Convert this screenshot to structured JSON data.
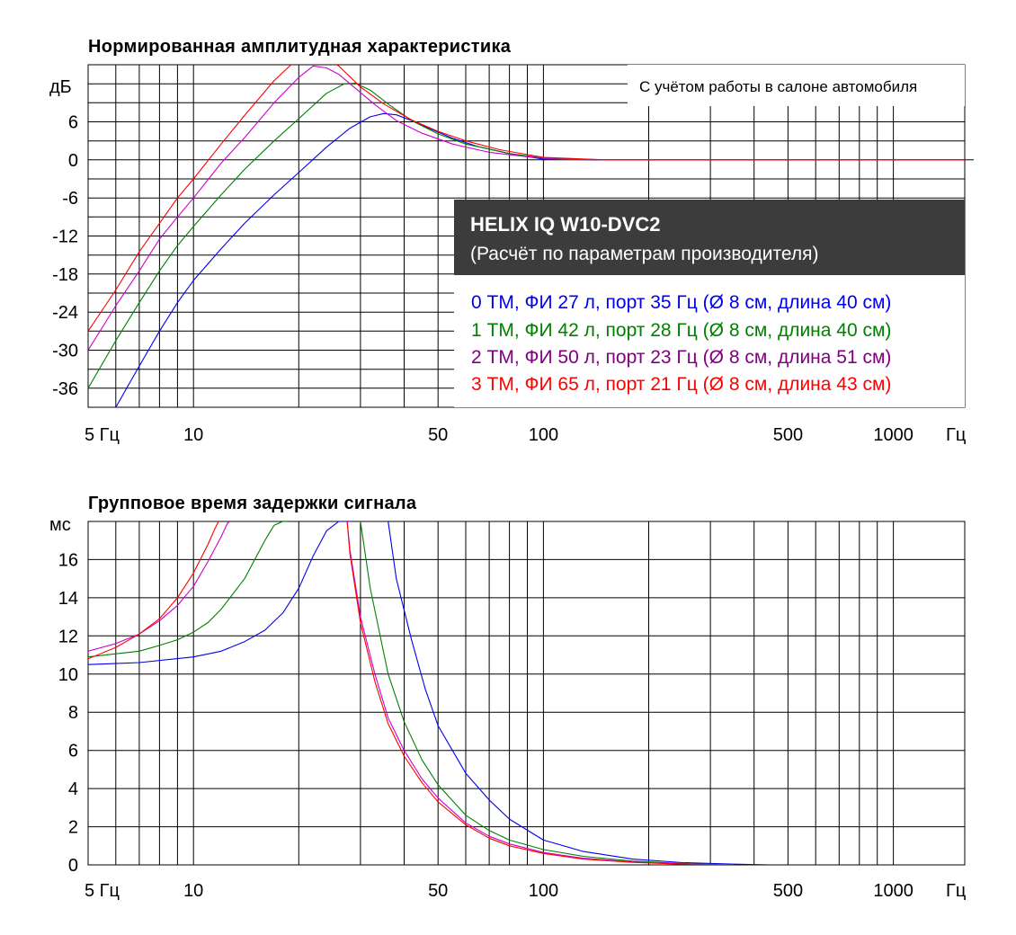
{
  "colors": {
    "tm0": "#0000ee",
    "tm1": "#008000",
    "tm2": "#cc00cc",
    "tm3": "#ff0000",
    "legend_tm2": "#800080",
    "info_header_bg": "#3c3c3c"
  },
  "info_box": {
    "model": "HELIX IQ W10-DVC2",
    "subtitle": "(Расчёт по параметрам производителя)",
    "legend": [
      "0 ТМ, ФИ 27 л, порт 35 Гц (Ø 8 см, длина 40 см)",
      "1 ТМ, ФИ 42 л, порт 28 Гц (Ø 8 см, длина 40 см)",
      "2 ТМ, ФИ 50 л, порт 23 Гц (Ø 8 см, длина 51 см)",
      "3 ТМ, ФИ 65 л, порт 21 Гц (Ø 8 см, длина 43 см)"
    ]
  },
  "chart_data": [
    {
      "type": "line",
      "title": "Нормированная амплитудная характеристика",
      "note": "С учётом работы в салоне автомобиля",
      "ylabel": "дБ",
      "xlabel": "Гц",
      "x_scale": "log",
      "xlim": [
        5,
        1600
      ],
      "ylim": [
        -39,
        15
      ],
      "grid": true,
      "x_ticks": [
        {
          "value": 5,
          "label": "5 Гц"
        },
        {
          "value": 10,
          "label": "10"
        },
        {
          "value": 50,
          "label": "50"
        },
        {
          "value": 100,
          "label": "100"
        },
        {
          "value": 500,
          "label": "500"
        },
        {
          "value": 1000,
          "label": "1000"
        }
      ],
      "x_unit_label": "Гц",
      "y_ticks": [
        "6",
        "0",
        "-6",
        "-12",
        "-18",
        "-24",
        "-30",
        "-36"
      ],
      "y_tick_values": [
        6,
        0,
        -6,
        -12,
        -18,
        -24,
        -30,
        -36
      ],
      "series": [
        {
          "name": "0 ТМ, ФИ 27 л, порт 35 Гц (Ø 8 см, длина 40 см)",
          "x": [
            6,
            7,
            8,
            9,
            10,
            12,
            14,
            17,
            20,
            24,
            28,
            32,
            35,
            38,
            42,
            48,
            55,
            65,
            80,
            100,
            150,
            400,
            1600
          ],
          "y": [
            -39,
            -32.5,
            -27,
            -22.5,
            -19,
            -14,
            -10,
            -5.5,
            -2,
            2,
            5,
            6.8,
            7.3,
            7.1,
            6.2,
            4.8,
            3.4,
            2.1,
            1,
            0.1,
            0,
            0,
            0
          ]
        },
        {
          "name": "1 ТМ, ФИ 42 л, порт 28 Гц (Ø 8 см, длина 40 см)",
          "x": [
            5,
            6,
            7,
            8,
            9,
            10,
            12,
            14,
            17,
            20,
            24,
            27,
            29,
            32,
            36,
            42,
            50,
            60,
            80,
            100,
            150,
            400,
            1600
          ],
          "y": [
            -36,
            -28.5,
            -22.5,
            -17.5,
            -13.5,
            -10.5,
            -5.5,
            -1.5,
            3,
            6.5,
            10.5,
            12,
            12.1,
            11,
            8.8,
            6.2,
            4.1,
            2.5,
            1,
            0.3,
            0,
            0,
            0
          ]
        },
        {
          "name": "2 ТМ, ФИ 50 л, порт 23 Гц (Ø 8 см, длина 51 см)",
          "x": [
            5,
            6,
            7,
            8,
            9,
            10,
            12,
            14,
            17,
            20,
            22,
            24,
            26,
            29,
            33,
            38,
            45,
            55,
            70,
            90,
            110,
            150,
            400,
            1600
          ],
          "y": [
            -30,
            -23,
            -17.5,
            -12.5,
            -9,
            -6,
            -0.5,
            3.5,
            9,
            13,
            14.8,
            14.5,
            13.5,
            11.3,
            8.7,
            6.2,
            4.2,
            2.5,
            1.2,
            0.5,
            0.1,
            0,
            0,
            0
          ]
        },
        {
          "name": "3 ТМ, ФИ 65 л, порт 21 Гц (Ø 8 см, длина 43 см)",
          "x": [
            5,
            6,
            7,
            8,
            9,
            10,
            12,
            14,
            17,
            19,
            20.5,
            23,
            26,
            30,
            35,
            42,
            50,
            60,
            75,
            100,
            150,
            400,
            1600
          ],
          "y": [
            -27,
            -20.5,
            -14.5,
            -10,
            -6,
            -3,
            2.5,
            7,
            12.5,
            15,
            16,
            16.5,
            14.8,
            11.5,
            8.8,
            6.3,
            4.5,
            3,
            1.6,
            0.4,
            0,
            0,
            0
          ]
        }
      ]
    },
    {
      "type": "line",
      "title": "Групповое время задержки сигнала",
      "ylabel": "мс",
      "xlabel": "Гц",
      "x_scale": "log",
      "xlim": [
        5,
        1600
      ],
      "ylim": [
        0,
        18
      ],
      "grid": true,
      "x_ticks": [
        {
          "value": 5,
          "label": "5 Гц"
        },
        {
          "value": 10,
          "label": "10"
        },
        {
          "value": 50,
          "label": "50"
        },
        {
          "value": 100,
          "label": "100"
        },
        {
          "value": 500,
          "label": "500"
        },
        {
          "value": 1000,
          "label": "1000"
        }
      ],
      "x_unit_label": "Гц",
      "y_ticks": [
        "16",
        "14",
        "12",
        "10",
        "8",
        "6",
        "4",
        "2",
        "0"
      ],
      "y_tick_values": [
        16,
        14,
        12,
        10,
        8,
        6,
        4,
        2,
        0
      ],
      "series": [
        {
          "name": "0 ТМ, ФИ 27 л, порт 35 Гц (Ø 8 см, длина 40 см)",
          "x": [
            5,
            7,
            10,
            12,
            14,
            16,
            18,
            20,
            22,
            24,
            26,
            28,
            28.5,
            null,
            36,
            38,
            42,
            46,
            50,
            60,
            70,
            80,
            100,
            130,
            180,
            250,
            350,
            450
          ],
          "y": [
            10.5,
            10.6,
            10.9,
            11.2,
            11.7,
            12.3,
            13.2,
            14.5,
            16.2,
            17.5,
            18,
            18,
            18,
            null,
            18,
            15,
            11.8,
            9.2,
            7.3,
            4.8,
            3.4,
            2.4,
            1.3,
            0.7,
            0.3,
            0.12,
            0.04,
            0
          ]
        },
        {
          "name": "1 ТМ, ФИ 42 л, порт 28 Гц (Ø 8 см, длина 40 см)",
          "x": [
            5,
            7,
            8,
            9,
            10,
            11,
            12,
            14,
            16,
            17,
            18,
            18.5,
            null,
            30,
            32,
            36,
            40,
            45,
            50,
            60,
            70,
            80,
            100,
            130,
            180,
            250,
            350
          ],
          "y": [
            10.9,
            11.2,
            11.5,
            11.8,
            12.2,
            12.7,
            13.4,
            15,
            17,
            17.8,
            18,
            18,
            null,
            18,
            14.5,
            10,
            7.5,
            5.5,
            4.2,
            2.6,
            1.8,
            1.3,
            0.8,
            0.45,
            0.2,
            0.07,
            0
          ]
        },
        {
          "name": "2 ТМ, ФИ 50 л, порт 23 Гц (Ø 8 см, длина 51 см)",
          "x": [
            5,
            6,
            7,
            8,
            9,
            10,
            11,
            12,
            12.5,
            12.7,
            null,
            27.5,
            28,
            30,
            33,
            36,
            40,
            45,
            50,
            60,
            70,
            80,
            100,
            130,
            180,
            250,
            350
          ],
          "y": [
            11.2,
            11.6,
            12.1,
            12.8,
            13.6,
            14.6,
            15.9,
            17.2,
            17.9,
            18,
            null,
            18,
            16.5,
            13,
            10,
            7.7,
            6,
            4.5,
            3.5,
            2.2,
            1.5,
            1.1,
            0.65,
            0.35,
            0.15,
            0.05,
            0
          ]
        },
        {
          "name": "3 ТМ, ФИ 65 л, порт 21 Гц (Ø 8 см, длина 43 см)",
          "x": [
            5,
            6,
            7,
            8,
            9,
            10,
            11,
            11.5,
            11.8,
            null,
            27.5,
            28,
            30,
            33,
            36,
            40,
            45,
            50,
            60,
            70,
            80,
            100,
            130,
            180,
            250,
            350
          ],
          "y": [
            10.8,
            11.4,
            12.1,
            12.9,
            14,
            15.3,
            16.8,
            17.6,
            18,
            null,
            18,
            16.3,
            12.7,
            9.6,
            7.4,
            5.7,
            4.3,
            3.3,
            2.1,
            1.4,
            1,
            0.6,
            0.3,
            0.13,
            0.04,
            0
          ]
        }
      ]
    }
  ]
}
